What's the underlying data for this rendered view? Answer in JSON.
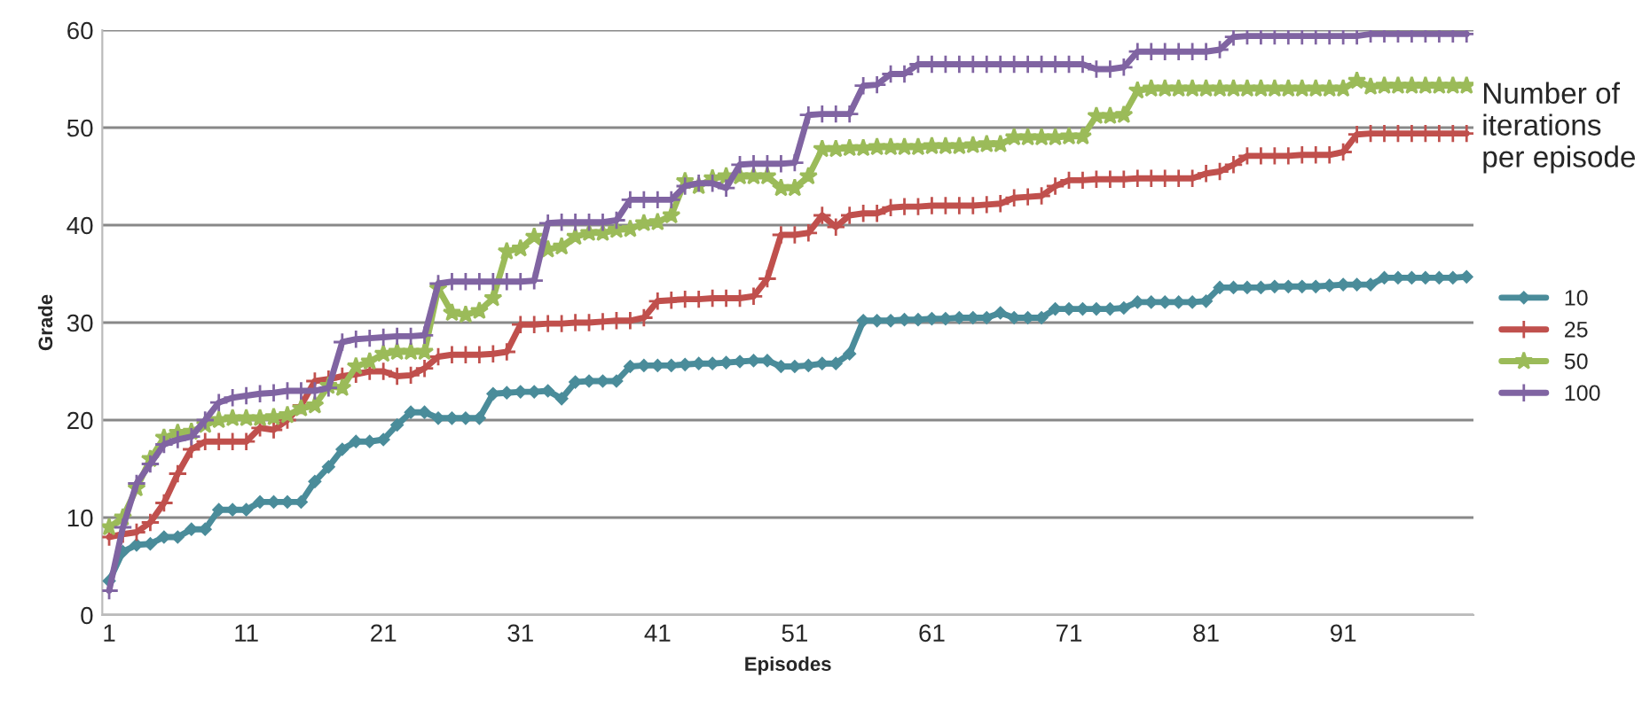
{
  "chart_data": {
    "type": "line",
    "xlabel": "Episodes",
    "ylabel": "Grade",
    "legend_title": "Number of iterations per episode",
    "categories": [
      "1",
      null,
      null,
      null,
      null,
      null,
      null,
      null,
      null,
      null,
      "11",
      null,
      null,
      null,
      null,
      null,
      null,
      null,
      null,
      null,
      "21",
      null,
      null,
      null,
      null,
      null,
      null,
      null,
      null,
      null,
      "31",
      null,
      null,
      null,
      null,
      null,
      null,
      null,
      null,
      null,
      "41",
      null,
      null,
      null,
      null,
      null,
      null,
      null,
      null,
      null,
      "51",
      null,
      null,
      null,
      null,
      null,
      null,
      null,
      null,
      null,
      "61",
      null,
      null,
      null,
      null,
      null,
      null,
      null,
      null,
      null,
      "71",
      null,
      null,
      null,
      null,
      null,
      null,
      null,
      null,
      null,
      "81",
      null,
      null,
      null,
      null,
      null,
      null,
      null,
      null,
      null,
      "91",
      null,
      null,
      null,
      null,
      null,
      null,
      null,
      null,
      null
    ],
    "series": [
      {
        "name": "10",
        "color": "#4a8c9a",
        "marker": "diamond",
        "values": [
          3.5,
          6.5,
          7.2,
          7.3,
          8,
          8,
          8.8,
          8.8,
          10.8,
          10.8,
          10.8,
          11.6,
          11.6,
          11.6,
          11.6,
          13.7,
          15.2,
          17,
          17.8,
          17.8,
          18,
          19.5,
          20.8,
          20.8,
          20.2,
          20.2,
          20.2,
          20.2,
          22.7,
          22.8,
          22.9,
          22.9,
          23,
          22.2,
          23.9,
          24,
          24,
          24,
          25.5,
          25.6,
          25.6,
          25.6,
          25.7,
          25.8,
          25.8,
          25.9,
          26,
          26.1,
          26.1,
          25.5,
          25.5,
          25.6,
          25.8,
          25.8,
          26.8,
          30.2,
          30.2,
          30.2,
          30.3,
          30.3,
          30.4,
          30.4,
          30.5,
          30.5,
          30.5,
          31,
          30.5,
          30.5,
          30.5,
          31.4,
          31.4,
          31.4,
          31.4,
          31.4,
          31.5,
          32.1,
          32.1,
          32.1,
          32.1,
          32.1,
          32.2,
          33.6,
          33.6,
          33.6,
          33.6,
          33.7,
          33.7,
          33.7,
          33.7,
          33.8,
          33.9,
          33.9,
          33.9,
          34.6,
          34.6,
          34.6,
          34.6,
          34.6,
          34.6,
          34.7
        ]
      },
      {
        "name": "25",
        "color": "#c0504d",
        "marker": "cross",
        "values": [
          8,
          8.3,
          8.5,
          9.5,
          11.5,
          14.5,
          17,
          17.8,
          17.8,
          17.8,
          17.8,
          19.2,
          19,
          20,
          21.5,
          24,
          24.2,
          24.5,
          24.7,
          25,
          25,
          24.5,
          24.6,
          25.3,
          26.5,
          26.7,
          26.7,
          26.7,
          26.8,
          27,
          29.8,
          29.8,
          29.9,
          29.9,
          30,
          30,
          30.1,
          30.2,
          30.2,
          30.5,
          32.2,
          32.3,
          32.4,
          32.4,
          32.5,
          32.5,
          32.5,
          32.7,
          34.5,
          39,
          39,
          39.2,
          41,
          39.8,
          41,
          41.2,
          41.2,
          41.8,
          41.9,
          41.9,
          42,
          42,
          42,
          42,
          42.1,
          42.2,
          42.8,
          42.9,
          43,
          44,
          44.6,
          44.6,
          44.7,
          44.7,
          44.7,
          44.8,
          44.8,
          44.8,
          44.8,
          44.8,
          45.3,
          45.5,
          46.2,
          47.1,
          47.1,
          47.1,
          47.1,
          47.2,
          47.2,
          47.2,
          47.5,
          49.3,
          49.4,
          49.4,
          49.4,
          49.4,
          49.4,
          49.4,
          49.4,
          49.4
        ]
      },
      {
        "name": "50",
        "color": "#9bbb59",
        "marker": "star",
        "values": [
          9,
          10,
          13,
          16,
          18.2,
          18.7,
          18.8,
          19.5,
          20,
          20.2,
          20.2,
          20.2,
          20.3,
          20.5,
          21.2,
          21.5,
          23.5,
          23.3,
          25.5,
          26,
          26.8,
          27,
          27,
          27,
          33.5,
          31,
          30.8,
          31.2,
          32.5,
          37.3,
          37.6,
          38.8,
          37.5,
          37.8,
          38.8,
          39.2,
          39.2,
          39.5,
          39.6,
          40.2,
          40.3,
          41,
          44.5,
          44,
          44.8,
          45,
          45,
          45,
          45,
          43.8,
          43.8,
          45,
          47.8,
          47.8,
          47.9,
          47.9,
          48,
          48,
          48,
          48,
          48.1,
          48.1,
          48.1,
          48.2,
          48.3,
          48.3,
          49,
          49,
          49,
          49,
          49.1,
          49.1,
          51.2,
          51.2,
          51.3,
          53.8,
          54,
          54,
          54,
          54,
          54,
          54,
          54,
          54,
          54,
          54,
          54,
          54,
          54,
          54,
          54,
          54.8,
          54.2,
          54.3,
          54.3,
          54.3,
          54.3,
          54.3,
          54.3,
          54.3
        ]
      },
      {
        "name": "100",
        "color": "#8064a2",
        "marker": "cross",
        "values": [
          2.5,
          9,
          13.5,
          15.5,
          17.5,
          18,
          18.3,
          20,
          21.8,
          22.3,
          22.5,
          22.7,
          22.8,
          23,
          23,
          23,
          23.3,
          28,
          28.3,
          28.4,
          28.5,
          28.6,
          28.6,
          28.7,
          34,
          34.2,
          34.2,
          34.2,
          34.2,
          34.2,
          34.2,
          34.3,
          40.2,
          40.3,
          40.3,
          40.3,
          40.3,
          40.5,
          42.6,
          42.6,
          42.6,
          42.6,
          44,
          44.3,
          44.3,
          43.8,
          46.2,
          46.3,
          46.3,
          46.3,
          46.4,
          51.3,
          51.4,
          51.4,
          51.4,
          54.3,
          54.4,
          55.5,
          55.5,
          56.5,
          56.5,
          56.5,
          56.5,
          56.5,
          56.5,
          56.5,
          56.5,
          56.5,
          56.5,
          56.5,
          56.5,
          56.5,
          56,
          56,
          56.2,
          57.8,
          57.8,
          57.8,
          57.8,
          57.8,
          57.8,
          58,
          59.3,
          59.4,
          59.4,
          59.4,
          59.4,
          59.4,
          59.4,
          59.4,
          59.4,
          59.4,
          59.6,
          59.6,
          59.6,
          59.6,
          59.6,
          59.6,
          59.6,
          59.6
        ]
      }
    ],
    "ylim": [
      0,
      60
    ],
    "yticks": [
      0,
      10,
      20,
      30,
      40,
      50,
      60
    ],
    "grid": "y",
    "legend": "right",
    "line_style": "solid"
  }
}
